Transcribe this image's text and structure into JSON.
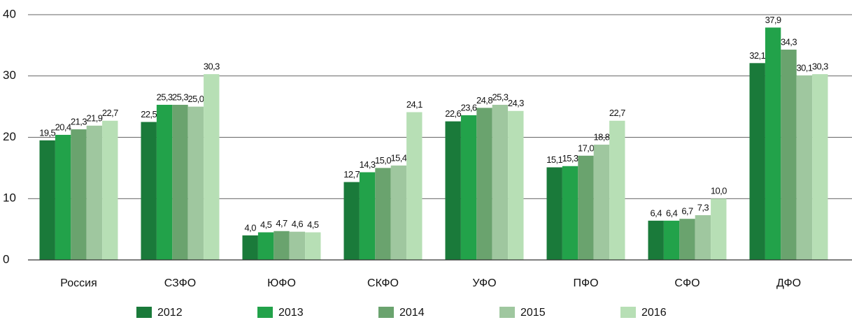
{
  "chart_data": {
    "type": "bar",
    "categories": [
      "Россия",
      "СЗФО",
      "ЮФО",
      "СКФО",
      "УФО",
      "ПФО",
      "СФО",
      "ДФО"
    ],
    "series": [
      {
        "name": "2012",
        "color": "#1a7a3a",
        "values": [
          19.5,
          22.5,
          4.0,
          12.7,
          22.6,
          15.1,
          6.4,
          32.1
        ],
        "value_labels": [
          "19,5",
          "22,5",
          "4,0",
          "12,7",
          "22,6",
          "15,1",
          "6,4",
          "32,1"
        ]
      },
      {
        "name": "2013",
        "color": "#22a24a",
        "values": [
          20.4,
          25.3,
          4.5,
          14.3,
          23.6,
          15.3,
          6.4,
          37.9
        ],
        "value_labels": [
          "20,4",
          "25,3",
          "4,5",
          "14,3",
          "23,6",
          "15,3",
          "6,4",
          "37,9"
        ]
      },
      {
        "name": "2014",
        "color": "#6aa36e",
        "values": [
          21.3,
          25.3,
          4.7,
          15.0,
          24.8,
          17.0,
          6.7,
          34.3
        ],
        "value_labels": [
          "21,3",
          "25,3",
          "4,7",
          "15,0",
          "24,8",
          "17,0",
          "6,7",
          "34,3"
        ]
      },
      {
        "name": "2015",
        "color": "#9fc79f",
        "values": [
          21.9,
          25.0,
          4.6,
          15.4,
          25.3,
          18.8,
          7.3,
          30.1
        ],
        "value_labels": [
          "21,9",
          "25,0",
          "4,6",
          "15,4",
          "25,3",
          "18,8",
          "7,3",
          "30,1"
        ]
      },
      {
        "name": "2016",
        "color": "#b7dfb5",
        "values": [
          22.7,
          30.3,
          4.5,
          24.1,
          24.3,
          22.7,
          10.0,
          30.3
        ],
        "value_labels": [
          "22,7",
          "30,3",
          "4,5",
          "24,1",
          "24,3",
          "22,7",
          "10,0",
          "30,3"
        ]
      }
    ],
    "ylim": [
      0,
      40
    ],
    "yticks": [
      0,
      10,
      20,
      30,
      40
    ],
    "grid": true,
    "legend": "bottom"
  }
}
